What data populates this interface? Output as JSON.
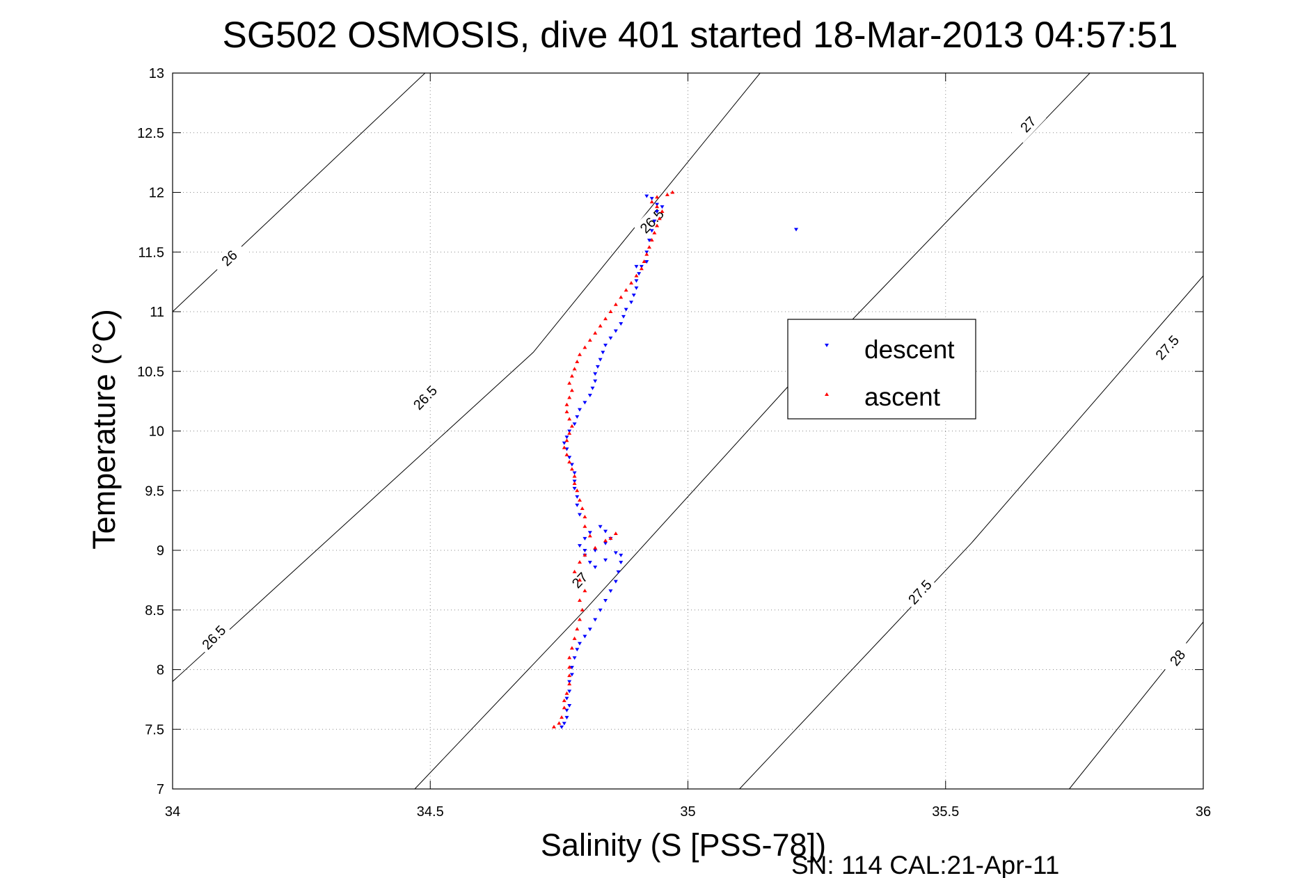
{
  "chart_data": {
    "type": "scatter",
    "title": "SG502 OSMOSIS, dive 401 started 18-Mar-2013 04:57:51",
    "xlabel": "Salinity (S [PSS-78])",
    "ylabel": "Temperature (°C)",
    "xlim": [
      34,
      36
    ],
    "ylim": [
      7,
      13
    ],
    "xticks": [
      34,
      34.5,
      35,
      35.5,
      36
    ],
    "xtick_labels": [
      "34",
      "34.5",
      "35",
      "35.5",
      "36"
    ],
    "yticks": [
      7,
      7.5,
      8,
      8.5,
      9,
      9.5,
      10,
      10.5,
      11,
      11.5,
      12,
      12.5,
      13
    ],
    "ytick_labels": [
      "7",
      "7.5",
      "8",
      "8.5",
      "9",
      "9.5",
      "10",
      "10.5",
      "11",
      "11.5",
      "12",
      "12.5",
      "13"
    ],
    "grid": true,
    "legend_position": "middle-right",
    "footer": "SN: 114  CAL:21-Apr-11",
    "contours": [
      {
        "level": "26",
        "points": [
          [
            34.0,
            11.0
          ],
          [
            34.49,
            13.0
          ]
        ],
        "labels": [
          [
            34.11,
            11.45
          ]
        ]
      },
      {
        "level": "26.5",
        "points": [
          [
            34.0,
            7.9
          ],
          [
            34.35,
            9.28
          ],
          [
            34.7,
            10.66
          ],
          [
            35.14,
            13.0
          ]
        ],
        "labels": [
          [
            34.08,
            8.27
          ],
          [
            34.49,
            10.28
          ],
          [
            34.93,
            11.76
          ]
        ]
      },
      {
        "level": "27",
        "points": [
          [
            34.47,
            7.0
          ],
          [
            34.8,
            8.5
          ],
          [
            35.2,
            10.4
          ],
          [
            35.78,
            13.0
          ]
        ],
        "labels": [
          [
            34.79,
            8.75
          ],
          [
            35.66,
            12.57
          ]
        ]
      },
      {
        "level": "27.5",
        "points": [
          [
            35.1,
            7.0
          ],
          [
            35.55,
            9.06
          ],
          [
            36.0,
            11.3
          ]
        ],
        "labels": [
          [
            35.45,
            8.65
          ],
          [
            35.93,
            10.7
          ]
        ]
      },
      {
        "level": "28",
        "points": [
          [
            35.74,
            7.0
          ],
          [
            36.0,
            8.4
          ]
        ],
        "labels": [
          [
            35.95,
            8.1
          ]
        ]
      }
    ],
    "series": [
      {
        "name": "descent",
        "color": "#0000ff",
        "marker": "triangle-down",
        "points": [
          [
            34.755,
            7.52
          ],
          [
            34.76,
            7.55
          ],
          [
            34.765,
            7.6
          ],
          [
            34.765,
            7.66
          ],
          [
            34.77,
            7.7
          ],
          [
            34.765,
            7.76
          ],
          [
            34.77,
            7.82
          ],
          [
            34.77,
            7.9
          ],
          [
            34.775,
            7.96
          ],
          [
            34.775,
            8.02
          ],
          [
            34.78,
            8.1
          ],
          [
            34.785,
            8.17
          ],
          [
            34.79,
            8.22
          ],
          [
            34.8,
            8.28
          ],
          [
            34.81,
            8.34
          ],
          [
            34.82,
            8.42
          ],
          [
            34.83,
            8.5
          ],
          [
            34.84,
            8.58
          ],
          [
            34.85,
            8.66
          ],
          [
            34.86,
            8.74
          ],
          [
            34.865,
            8.82
          ],
          [
            34.87,
            8.9
          ],
          [
            34.87,
            8.96
          ],
          [
            34.86,
            8.98
          ],
          [
            34.84,
            8.92
          ],
          [
            34.82,
            8.86
          ],
          [
            34.81,
            8.9
          ],
          [
            34.8,
            8.96
          ],
          [
            34.82,
            9.0
          ],
          [
            34.84,
            9.06
          ],
          [
            34.85,
            9.1
          ],
          [
            34.84,
            9.16
          ],
          [
            34.83,
            9.2
          ],
          [
            34.81,
            9.15
          ],
          [
            34.8,
            9.1
          ],
          [
            34.79,
            9.04
          ],
          [
            34.8,
            9.0
          ],
          [
            34.79,
            9.3
          ],
          [
            34.785,
            9.38
          ],
          [
            34.785,
            9.45
          ],
          [
            34.78,
            9.52
          ],
          [
            34.78,
            9.58
          ],
          [
            34.78,
            9.65
          ],
          [
            34.775,
            9.72
          ],
          [
            34.77,
            9.78
          ],
          [
            34.765,
            9.85
          ],
          [
            34.76,
            9.9
          ],
          [
            34.765,
            9.95
          ],
          [
            34.77,
            10.0
          ],
          [
            34.78,
            10.06
          ],
          [
            34.785,
            10.12
          ],
          [
            34.79,
            10.18
          ],
          [
            34.8,
            10.24
          ],
          [
            34.81,
            10.3
          ],
          [
            34.815,
            10.36
          ],
          [
            34.82,
            10.42
          ],
          [
            34.82,
            10.48
          ],
          [
            34.825,
            10.54
          ],
          [
            34.83,
            10.6
          ],
          [
            34.835,
            10.66
          ],
          [
            34.84,
            10.72
          ],
          [
            34.85,
            10.78
          ],
          [
            34.86,
            10.84
          ],
          [
            34.87,
            10.9
          ],
          [
            34.875,
            10.96
          ],
          [
            34.88,
            11.02
          ],
          [
            34.89,
            11.08
          ],
          [
            34.895,
            11.14
          ],
          [
            34.9,
            11.2
          ],
          [
            34.9,
            11.26
          ],
          [
            34.905,
            11.32
          ],
          [
            34.91,
            11.38
          ],
          [
            34.92,
            11.42
          ],
          [
            34.9,
            11.38
          ],
          [
            34.92,
            11.5
          ],
          [
            34.925,
            11.6
          ],
          [
            34.93,
            11.68
          ],
          [
            34.935,
            11.76
          ],
          [
            34.94,
            11.84
          ],
          [
            34.94,
            11.9
          ],
          [
            34.93,
            11.95
          ],
          [
            34.92,
            11.97
          ],
          [
            34.95,
            11.88
          ],
          [
            35.21,
            11.69
          ]
        ]
      },
      {
        "name": "ascent",
        "color": "#ff0000",
        "marker": "triangle-up",
        "points": [
          [
            34.74,
            7.52
          ],
          [
            34.75,
            7.55
          ],
          [
            34.755,
            7.6
          ],
          [
            34.76,
            7.68
          ],
          [
            34.76,
            7.74
          ],
          [
            34.765,
            7.8
          ],
          [
            34.77,
            7.88
          ],
          [
            34.77,
            7.95
          ],
          [
            34.77,
            8.02
          ],
          [
            34.77,
            8.1
          ],
          [
            34.775,
            8.18
          ],
          [
            34.78,
            8.26
          ],
          [
            34.785,
            8.34
          ],
          [
            34.79,
            8.42
          ],
          [
            34.795,
            8.5
          ],
          [
            34.79,
            8.58
          ],
          [
            34.8,
            8.66
          ],
          [
            34.79,
            8.75
          ],
          [
            34.78,
            8.82
          ],
          [
            34.79,
            8.9
          ],
          [
            34.8,
            8.96
          ],
          [
            34.82,
            9.02
          ],
          [
            34.84,
            9.08
          ],
          [
            34.86,
            9.14
          ],
          [
            34.85,
            9.1
          ],
          [
            34.81,
            9.12
          ],
          [
            34.8,
            9.2
          ],
          [
            34.8,
            9.28
          ],
          [
            34.795,
            9.35
          ],
          [
            34.79,
            9.42
          ],
          [
            34.785,
            9.5
          ],
          [
            34.78,
            9.56
          ],
          [
            34.78,
            9.62
          ],
          [
            34.775,
            9.68
          ],
          [
            34.77,
            9.74
          ],
          [
            34.765,
            9.8
          ],
          [
            34.76,
            9.86
          ],
          [
            34.765,
            9.92
          ],
          [
            34.77,
            9.98
          ],
          [
            34.775,
            10.04
          ],
          [
            34.77,
            10.1
          ],
          [
            34.765,
            10.16
          ],
          [
            34.765,
            10.22
          ],
          [
            34.77,
            10.28
          ],
          [
            34.775,
            10.34
          ],
          [
            34.77,
            10.4
          ],
          [
            34.775,
            10.46
          ],
          [
            34.78,
            10.52
          ],
          [
            34.785,
            10.58
          ],
          [
            34.79,
            10.64
          ],
          [
            34.8,
            10.7
          ],
          [
            34.81,
            10.76
          ],
          [
            34.82,
            10.82
          ],
          [
            34.83,
            10.88
          ],
          [
            34.84,
            10.94
          ],
          [
            34.85,
            11.0
          ],
          [
            34.86,
            11.06
          ],
          [
            34.87,
            11.12
          ],
          [
            34.88,
            11.18
          ],
          [
            34.89,
            11.24
          ],
          [
            34.9,
            11.3
          ],
          [
            34.91,
            11.36
          ],
          [
            34.915,
            11.42
          ],
          [
            34.92,
            11.48
          ],
          [
            34.925,
            11.54
          ],
          [
            34.93,
            11.6
          ],
          [
            34.935,
            11.66
          ],
          [
            34.94,
            11.72
          ],
          [
            34.945,
            11.78
          ],
          [
            34.95,
            11.84
          ],
          [
            34.94,
            11.88
          ],
          [
            34.93,
            11.92
          ],
          [
            34.94,
            11.96
          ],
          [
            34.96,
            11.98
          ],
          [
            34.97,
            12.0
          ]
        ]
      }
    ]
  }
}
